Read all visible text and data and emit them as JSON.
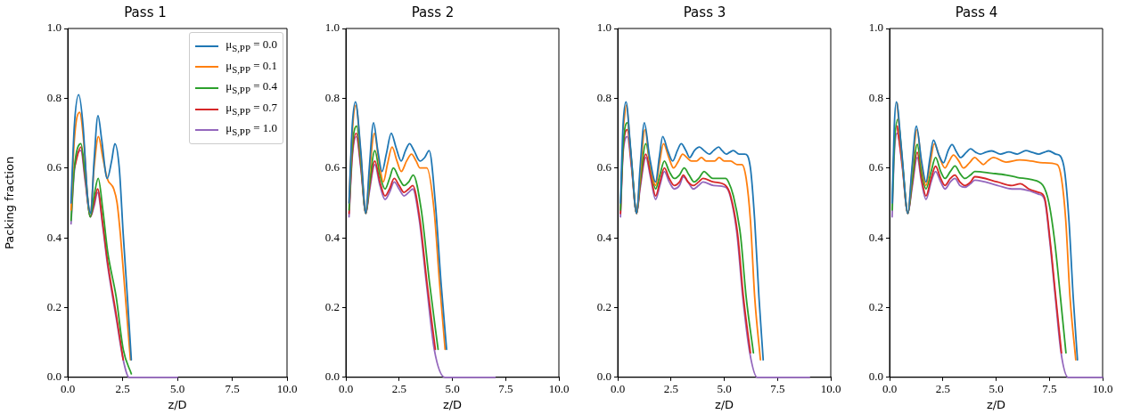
{
  "chart_data": [
    {
      "type": "line",
      "title": "Pass 1",
      "xlabel": "z/D",
      "ylabel": "Packing fraction",
      "xlim": [
        0,
        10
      ],
      "ylim": [
        0,
        1
      ],
      "xticks": [
        {
          "value": 0,
          "label": "0.0"
        },
        {
          "value": 2.5,
          "label": "2.5"
        },
        {
          "value": 5,
          "label": "5.0"
        },
        {
          "value": 7.5,
          "label": "7.5"
        },
        {
          "value": 10,
          "label": "10.0"
        }
      ],
      "yticks": [
        {
          "value": 0,
          "label": "0.0"
        },
        {
          "value": 0.2,
          "label": "0.2"
        },
        {
          "value": 0.4,
          "label": "0.4"
        },
        {
          "value": 0.6,
          "label": "0.6"
        },
        {
          "value": 0.8,
          "label": "0.8"
        },
        {
          "value": 1,
          "label": "1.0"
        }
      ],
      "grid": false,
      "legend": "top right",
      "series": [
        {
          "name": "μ$_{S,PP}$ = 0.0",
          "color": "#1f77b4",
          "x": [
            0.15,
            0.3,
            0.5,
            0.7,
            0.9,
            1.05,
            1.2,
            1.38,
            1.55,
            1.8,
            2.0,
            2.15,
            2.35,
            2.53,
            2.72,
            2.9
          ],
          "values": [
            0.5,
            0.72,
            0.81,
            0.72,
            0.52,
            0.47,
            0.62,
            0.75,
            0.68,
            0.57,
            0.62,
            0.67,
            0.6,
            0.41,
            0.23,
            0.05
          ]
        },
        {
          "name": "μ$_{S,PP}$ = 0.1",
          "color": "#ff7f0e",
          "x": [
            0.15,
            0.3,
            0.54,
            0.75,
            0.9,
            1.03,
            1.2,
            1.4,
            1.6,
            1.8,
            2.1,
            2.25,
            2.4,
            2.63,
            2.86
          ],
          "values": [
            0.48,
            0.68,
            0.76,
            0.66,
            0.52,
            0.47,
            0.6,
            0.69,
            0.63,
            0.57,
            0.54,
            0.5,
            0.41,
            0.23,
            0.05
          ]
        },
        {
          "name": "μ$_{S,PP}$ = 0.4",
          "color": "#2ca02c",
          "x": [
            0.15,
            0.3,
            0.6,
            0.8,
            1.03,
            1.2,
            1.39,
            1.6,
            1.82,
            2.21,
            2.53,
            2.9
          ],
          "values": [
            0.45,
            0.6,
            0.67,
            0.58,
            0.46,
            0.52,
            0.57,
            0.48,
            0.36,
            0.23,
            0.08,
            0.01
          ]
        },
        {
          "name": "μ$_{S,PP}$ = 0.7",
          "color": "#d62728",
          "x": [
            0.3,
            0.6,
            0.8,
            1.03,
            1.2,
            1.36,
            1.6,
            1.82,
            2.21,
            2.53
          ],
          "values": [
            0.6,
            0.66,
            0.57,
            0.46,
            0.5,
            0.54,
            0.44,
            0.33,
            0.18,
            0.05
          ]
        },
        {
          "name": "μ$_{S,PP}$ = 1.0",
          "color": "#9467bd",
          "x": [
            0.15,
            0.3,
            0.6,
            0.8,
            1.03,
            1.2,
            1.36,
            1.6,
            1.82,
            2.21,
            2.53,
            2.8,
            5
          ],
          "values": [
            0.44,
            0.59,
            0.65,
            0.56,
            0.46,
            0.49,
            0.53,
            0.43,
            0.32,
            0.17,
            0.05,
            0,
            0
          ]
        }
      ]
    },
    {
      "type": "line",
      "title": "Pass 2",
      "xlabel": "z/D",
      "xlim": [
        0,
        10
      ],
      "ylim": [
        0,
        1
      ],
      "xticks": [
        {
          "value": 0,
          "label": "0.0"
        },
        {
          "value": 2.5,
          "label": "2.5"
        },
        {
          "value": 5,
          "label": "5.0"
        },
        {
          "value": 7.5,
          "label": "7.5"
        },
        {
          "value": 10,
          "label": "10.0"
        }
      ],
      "yticks": [
        {
          "value": 0,
          "label": "0.0"
        },
        {
          "value": 0.2,
          "label": "0.2"
        },
        {
          "value": 0.4,
          "label": "0.4"
        },
        {
          "value": 0.6,
          "label": "0.6"
        },
        {
          "value": 0.8,
          "label": "0.8"
        },
        {
          "value": 1,
          "label": "1.0"
        }
      ],
      "grid": false,
      "series": [
        {
          "color": "#1f77b4",
          "x": [
            0.15,
            0.3,
            0.45,
            0.7,
            0.94,
            1.1,
            1.3,
            1.5,
            1.7,
            1.9,
            2.13,
            2.35,
            2.6,
            2.8,
            2.99,
            3.2,
            3.48,
            3.7,
            3.91,
            4.2,
            4.47,
            4.73
          ],
          "values": [
            0.5,
            0.72,
            0.79,
            0.65,
            0.47,
            0.6,
            0.73,
            0.65,
            0.59,
            0.64,
            0.7,
            0.66,
            0.62,
            0.65,
            0.67,
            0.65,
            0.62,
            0.63,
            0.65,
            0.5,
            0.27,
            0.08
          ]
        },
        {
          "color": "#ff7f0e",
          "x": [
            0.15,
            0.3,
            0.47,
            0.7,
            0.94,
            1.1,
            1.34,
            1.55,
            1.76,
            1.95,
            2.17,
            2.4,
            2.6,
            2.85,
            3.08,
            3.3,
            3.48,
            3.8,
            4.14,
            4.4,
            4.66
          ],
          "values": [
            0.5,
            0.7,
            0.78,
            0.64,
            0.47,
            0.58,
            0.7,
            0.62,
            0.56,
            0.61,
            0.66,
            0.62,
            0.59,
            0.62,
            0.64,
            0.62,
            0.6,
            0.6,
            0.48,
            0.27,
            0.08
          ]
        },
        {
          "color": "#2ca02c",
          "x": [
            0.15,
            0.3,
            0.51,
            0.7,
            0.94,
            1.1,
            1.36,
            1.6,
            1.84,
            2.05,
            2.23,
            2.5,
            2.73,
            2.95,
            3.16,
            3.54,
            3.93,
            4.33
          ],
          "values": [
            0.48,
            0.66,
            0.72,
            0.62,
            0.47,
            0.55,
            0.65,
            0.58,
            0.54,
            0.57,
            0.6,
            0.57,
            0.55,
            0.56,
            0.58,
            0.48,
            0.27,
            0.08
          ]
        },
        {
          "color": "#d62728",
          "x": [
            0.15,
            0.3,
            0.49,
            0.7,
            0.94,
            1.1,
            1.36,
            1.6,
            1.84,
            2.05,
            2.27,
            2.5,
            2.73,
            2.95,
            3.14,
            3.48,
            3.81,
            4.2
          ],
          "values": [
            0.47,
            0.64,
            0.7,
            0.61,
            0.47,
            0.54,
            0.62,
            0.56,
            0.52,
            0.54,
            0.57,
            0.55,
            0.53,
            0.54,
            0.55,
            0.45,
            0.27,
            0.08
          ]
        },
        {
          "color": "#9467bd",
          "x": [
            0.15,
            0.3,
            0.49,
            0.7,
            0.94,
            1.1,
            1.36,
            1.6,
            1.84,
            2.05,
            2.27,
            2.5,
            2.73,
            2.95,
            3.14,
            3.45,
            3.78,
            4.15,
            4.65,
            7
          ],
          "values": [
            0.46,
            0.63,
            0.69,
            0.6,
            0.47,
            0.53,
            0.61,
            0.55,
            0.51,
            0.53,
            0.56,
            0.54,
            0.52,
            0.53,
            0.54,
            0.45,
            0.27,
            0.08,
            0,
            0
          ]
        }
      ]
    },
    {
      "type": "line",
      "title": "Pass 3",
      "xlabel": "z/D",
      "xlim": [
        0,
        10
      ],
      "ylim": [
        0,
        1
      ],
      "xticks": [
        {
          "value": 0,
          "label": "0.0"
        },
        {
          "value": 2.5,
          "label": "2.5"
        },
        {
          "value": 5,
          "label": "5.0"
        },
        {
          "value": 7.5,
          "label": "7.5"
        },
        {
          "value": 10,
          "label": "10.0"
        }
      ],
      "yticks": [
        {
          "value": 0,
          "label": "0.0"
        },
        {
          "value": 0.2,
          "label": "0.2"
        },
        {
          "value": 0.4,
          "label": "0.4"
        },
        {
          "value": 0.6,
          "label": "0.6"
        },
        {
          "value": 0.8,
          "label": "0.8"
        },
        {
          "value": 1,
          "label": "1.0"
        }
      ],
      "grid": false,
      "series": [
        {
          "color": "#1f77b4",
          "x": [
            0.13,
            0.25,
            0.39,
            0.6,
            0.89,
            1.05,
            1.25,
            1.5,
            1.78,
            1.95,
            2.11,
            2.35,
            2.58,
            2.8,
            2.98,
            3.2,
            3.38,
            3.6,
            3.84,
            4.05,
            4.3,
            4.5,
            4.74,
            4.9,
            5.1,
            5.25,
            5.43,
            5.7,
            5.96,
            6.23,
            6.43,
            6.63,
            6.83
          ],
          "values": [
            0.5,
            0.72,
            0.79,
            0.66,
            0.47,
            0.6,
            0.73,
            0.63,
            0.56,
            0.63,
            0.69,
            0.65,
            0.62,
            0.65,
            0.67,
            0.65,
            0.63,
            0.65,
            0.66,
            0.65,
            0.64,
            0.65,
            0.66,
            0.65,
            0.64,
            0.645,
            0.65,
            0.64,
            0.64,
            0.6,
            0.45,
            0.23,
            0.05
          ]
        },
        {
          "color": "#ff7f0e",
          "x": [
            0.25,
            0.41,
            0.6,
            0.89,
            1.05,
            1.28,
            1.5,
            1.78,
            1.95,
            2.15,
            2.4,
            2.62,
            2.85,
            3.05,
            3.25,
            3.46,
            3.7,
            3.93,
            4.15,
            4.36,
            4.55,
            4.76,
            5.0,
            5.3,
            5.6,
            5.83,
            6.03,
            6.23,
            6.43,
            6.7
          ],
          "values": [
            0.71,
            0.78,
            0.65,
            0.47,
            0.58,
            0.71,
            0.62,
            0.55,
            0.61,
            0.67,
            0.63,
            0.6,
            0.62,
            0.64,
            0.63,
            0.62,
            0.62,
            0.63,
            0.62,
            0.62,
            0.62,
            0.63,
            0.62,
            0.62,
            0.61,
            0.61,
            0.57,
            0.45,
            0.23,
            0.05
          ]
        },
        {
          "color": "#2ca02c",
          "x": [
            0.13,
            0.25,
            0.45,
            0.65,
            0.89,
            1.05,
            1.32,
            1.55,
            1.78,
            1.98,
            2.19,
            2.42,
            2.66,
            2.9,
            3.12,
            3.35,
            3.59,
            3.8,
            4.06,
            4.25,
            4.46,
            4.8,
            5.06,
            5.2,
            5.43,
            5.76,
            6.03,
            6.37
          ],
          "values": [
            0.48,
            0.66,
            0.73,
            0.62,
            0.47,
            0.56,
            0.67,
            0.6,
            0.54,
            0.58,
            0.62,
            0.59,
            0.57,
            0.58,
            0.6,
            0.58,
            0.56,
            0.57,
            0.59,
            0.58,
            0.57,
            0.57,
            0.57,
            0.56,
            0.52,
            0.41,
            0.23,
            0.07
          ]
        },
        {
          "color": "#d62728",
          "x": [
            0.13,
            0.25,
            0.45,
            0.65,
            0.89,
            1.05,
            1.32,
            1.55,
            1.78,
            1.98,
            2.19,
            2.42,
            2.66,
            2.9,
            3.08,
            3.3,
            3.55,
            3.8,
            4.0,
            4.5,
            5.06,
            5.3,
            5.63,
            5.9,
            6.23
          ],
          "values": [
            0.47,
            0.65,
            0.71,
            0.61,
            0.47,
            0.55,
            0.64,
            0.58,
            0.52,
            0.56,
            0.6,
            0.57,
            0.55,
            0.56,
            0.58,
            0.56,
            0.55,
            0.56,
            0.57,
            0.56,
            0.55,
            0.52,
            0.41,
            0.23,
            0.07
          ]
        },
        {
          "color": "#9467bd",
          "x": [
            0.13,
            0.25,
            0.45,
            0.65,
            0.89,
            1.05,
            1.32,
            1.55,
            1.78,
            1.98,
            2.19,
            2.42,
            2.66,
            2.9,
            3.08,
            3.3,
            3.55,
            3.8,
            4.0,
            4.5,
            5.06,
            5.28,
            5.6,
            5.87,
            6.2,
            6.55,
            9
          ],
          "values": [
            0.46,
            0.64,
            0.69,
            0.6,
            0.47,
            0.54,
            0.63,
            0.57,
            0.51,
            0.55,
            0.59,
            0.56,
            0.54,
            0.55,
            0.575,
            0.56,
            0.54,
            0.55,
            0.56,
            0.55,
            0.545,
            0.52,
            0.41,
            0.23,
            0.07,
            0,
            0
          ]
        }
      ]
    },
    {
      "type": "line",
      "title": "Pass 4",
      "xlabel": "z/D",
      "xlim": [
        0,
        10
      ],
      "ylim": [
        0,
        1
      ],
      "xticks": [
        {
          "value": 0,
          "label": "0.0"
        },
        {
          "value": 2.5,
          "label": "2.5"
        },
        {
          "value": 5,
          "label": "5.0"
        },
        {
          "value": 7.5,
          "label": "7.5"
        },
        {
          "value": 10,
          "label": "10.0"
        }
      ],
      "yticks": [
        {
          "value": 0,
          "label": "0.0"
        },
        {
          "value": 0.2,
          "label": "0.2"
        },
        {
          "value": 0.4,
          "label": "0.4"
        },
        {
          "value": 0.6,
          "label": "0.6"
        },
        {
          "value": 0.8,
          "label": "0.8"
        },
        {
          "value": 1,
          "label": "1.0"
        }
      ],
      "grid": false,
      "series": [
        {
          "color": "#1f77b4",
          "x": [
            0.12,
            0.22,
            0.32,
            0.55,
            0.86,
            1.05,
            1.26,
            1.5,
            1.71,
            1.9,
            2.06,
            2.3,
            2.53,
            2.75,
            2.93,
            3.15,
            3.33,
            3.6,
            3.8,
            4.05,
            4.27,
            4.5,
            4.8,
            5.2,
            5.6,
            6.0,
            6.4,
            6.7,
            7.0,
            7.25,
            7.47,
            7.8,
            8.02,
            8.22,
            8.42,
            8.62,
            8.82
          ],
          "values": [
            0.5,
            0.72,
            0.79,
            0.66,
            0.47,
            0.6,
            0.72,
            0.62,
            0.56,
            0.63,
            0.68,
            0.64,
            0.615,
            0.65,
            0.667,
            0.645,
            0.63,
            0.645,
            0.655,
            0.645,
            0.64,
            0.645,
            0.649,
            0.64,
            0.646,
            0.64,
            0.65,
            0.645,
            0.64,
            0.645,
            0.649,
            0.64,
            0.634,
            0.59,
            0.45,
            0.23,
            0.05
          ]
        },
        {
          "color": "#ff7f0e",
          "x": [
            0.36,
            0.55,
            0.86,
            1.05,
            1.29,
            1.5,
            1.71,
            1.9,
            2.1,
            2.35,
            2.6,
            2.8,
            3.0,
            3.25,
            3.47,
            3.75,
            4.0,
            4.2,
            4.4,
            4.6,
            4.87,
            5.47,
            6.1,
            6.65,
            7.2,
            7.87,
            8.07,
            8.27,
            8.47,
            8.74
          ],
          "values": [
            0.785,
            0.65,
            0.47,
            0.59,
            0.71,
            0.61,
            0.55,
            0.61,
            0.67,
            0.63,
            0.6,
            0.62,
            0.637,
            0.62,
            0.6,
            0.615,
            0.63,
            0.62,
            0.61,
            0.62,
            0.63,
            0.617,
            0.623,
            0.62,
            0.615,
            0.61,
            0.57,
            0.45,
            0.23,
            0.05
          ]
        },
        {
          "color": "#2ca02c",
          "x": [
            0.12,
            0.22,
            0.39,
            0.6,
            0.86,
            1.05,
            1.3,
            1.5,
            1.71,
            1.95,
            2.16,
            2.4,
            2.6,
            2.85,
            3.07,
            3.3,
            3.54,
            3.8,
            4.0,
            4.8,
            5.47,
            6.0,
            6.65,
            7.2,
            7.48,
            7.75,
            8.02,
            8.28
          ],
          "values": [
            0.48,
            0.66,
            0.74,
            0.62,
            0.47,
            0.56,
            0.668,
            0.59,
            0.54,
            0.59,
            0.63,
            0.59,
            0.57,
            0.59,
            0.606,
            0.585,
            0.57,
            0.58,
            0.59,
            0.585,
            0.58,
            0.573,
            0.567,
            0.55,
            0.5,
            0.39,
            0.23,
            0.07
          ]
        },
        {
          "color": "#d62728",
          "x": [
            0.36,
            0.6,
            0.86,
            1.05,
            1.3,
            1.5,
            1.71,
            1.95,
            2.16,
            2.4,
            2.6,
            2.85,
            3.07,
            3.3,
            3.54,
            3.8,
            4.0,
            5.07,
            5.74,
            6.14,
            6.54,
            7.0,
            7.27,
            7.54,
            7.8,
            8.07
          ],
          "values": [
            0.72,
            0.61,
            0.47,
            0.55,
            0.645,
            0.57,
            0.52,
            0.57,
            0.605,
            0.57,
            0.55,
            0.57,
            0.58,
            0.56,
            0.55,
            0.56,
            0.575,
            0.56,
            0.55,
            0.555,
            0.54,
            0.53,
            0.516,
            0.39,
            0.23,
            0.07
          ]
        },
        {
          "color": "#9467bd",
          "x": [
            0.12,
            0.22,
            0.36,
            0.6,
            0.86,
            1.05,
            1.3,
            1.5,
            1.71,
            1.95,
            2.16,
            2.4,
            2.6,
            2.85,
            3.07,
            3.3,
            3.54,
            3.8,
            4.0,
            5.07,
            5.74,
            6.14,
            6.54,
            7.0,
            7.27,
            7.52,
            7.78,
            8.05,
            8.38,
            10
          ],
          "values": [
            0.46,
            0.64,
            0.7,
            0.6,
            0.47,
            0.54,
            0.63,
            0.56,
            0.51,
            0.56,
            0.59,
            0.56,
            0.54,
            0.56,
            0.57,
            0.55,
            0.545,
            0.555,
            0.565,
            0.55,
            0.54,
            0.54,
            0.535,
            0.525,
            0.51,
            0.39,
            0.23,
            0.07,
            0,
            0
          ]
        }
      ]
    }
  ]
}
